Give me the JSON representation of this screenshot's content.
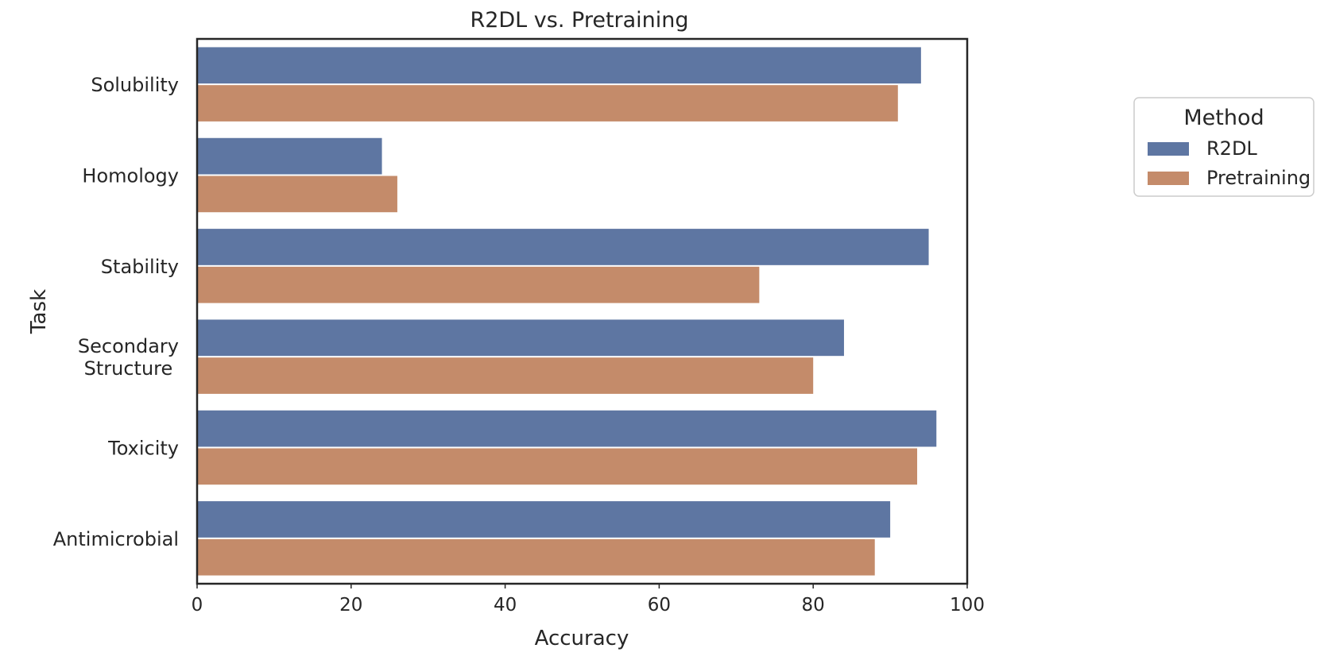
{
  "chart_data": {
    "type": "bar",
    "orientation": "horizontal",
    "title": "R2DL vs. Pretraining",
    "xlabel": "Accuracy",
    "ylabel": "Task",
    "xlim": [
      0,
      100
    ],
    "xticks": [
      0,
      20,
      40,
      60,
      80,
      100
    ],
    "categories": [
      [
        "Solubility"
      ],
      [
        "Homology"
      ],
      [
        "Stability"
      ],
      [
        "Secondary",
        "Structure"
      ],
      [
        "Toxicity"
      ],
      [
        "Antimicrobial"
      ]
    ],
    "series": [
      {
        "name": "R2DL",
        "color": "#5e76a2",
        "values": [
          94,
          24,
          95,
          84,
          96,
          90
        ]
      },
      {
        "name": "Pretraining",
        "color": "#c48b6a",
        "values": [
          91,
          26,
          73,
          80,
          93.5,
          88
        ]
      }
    ],
    "legend": {
      "title": "Method",
      "placement": "outside-right"
    },
    "grid": false
  }
}
